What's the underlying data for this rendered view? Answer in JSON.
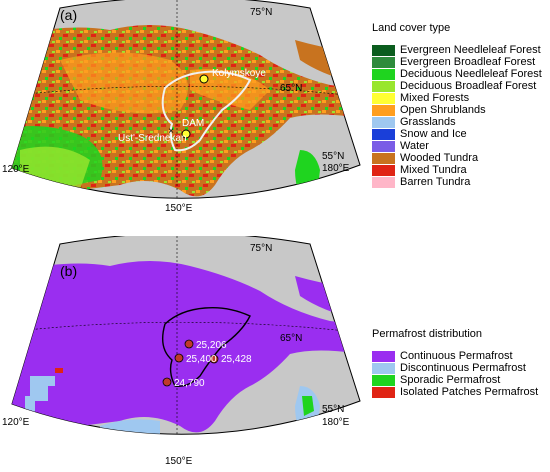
{
  "panel_a": {
    "letter": "(a)",
    "lat_top": "75°N",
    "lat_mid": "65°N",
    "lat_bottom": "55°N",
    "lon_left": "120°E",
    "lon_mid": "150°E",
    "lon_right": "180°E",
    "sites": {
      "kolymskoye": "Kolymskoye",
      "dam": "DAM",
      "ust_srednekan": "Ust'-Srednekan"
    },
    "legend": {
      "title": "Land cover type",
      "items": [
        {
          "label": "Evergreen Needleleaf Forest",
          "color": "#0b5d1e"
        },
        {
          "label": "Evergreen Broadleaf Forest",
          "color": "#2e8b3c"
        },
        {
          "label": "Deciduous Needleleaf Forest",
          "color": "#1fd41f"
        },
        {
          "label": "Deciduous Broadleaf Forest",
          "color": "#99e62e"
        },
        {
          "label": "Mixed Forests",
          "color": "#ffff33"
        },
        {
          "label": "Open Shrublands",
          "color": "#ff9e1f"
        },
        {
          "label": "Grasslands",
          "color": "#9fc8f0"
        },
        {
          "label": "Snow and Ice",
          "color": "#1a3fd9"
        },
        {
          "label": "Water",
          "color": "#7a5ce6"
        },
        {
          "label": "Wooded Tundra",
          "color": "#c8731f"
        },
        {
          "label": "Mixed Tundra",
          "color": "#e02414"
        },
        {
          "label": "Barren Tundra",
          "color": "#ffb6c8"
        }
      ]
    }
  },
  "panel_b": {
    "letter": "(b)",
    "lat_top": "75°N",
    "lat_mid": "65°N",
    "lat_bottom": "55°N",
    "lon_left": "120°E",
    "lon_mid": "150°E",
    "lon_right": "180°E",
    "sites": {
      "s1": "25,206",
      "s2": "25,400",
      "s3": "25,428",
      "s4": "24,790"
    },
    "legend": {
      "title": "Permafrost distribution",
      "items": [
        {
          "label": "Continuous Permafrost",
          "color": "#9a2ef0"
        },
        {
          "label": "Discontinuous Permafrost",
          "color": "#9fc8f0"
        },
        {
          "label": "Sporadic Permafrost",
          "color": "#1fd41f"
        },
        {
          "label": "Isolated Patches Permafrost",
          "color": "#e02414"
        }
      ]
    }
  }
}
